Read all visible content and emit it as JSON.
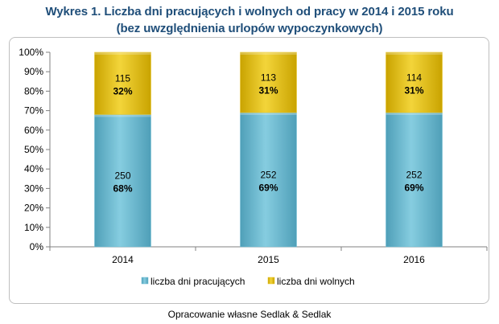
{
  "title_line1": "Wykres 1. Liczba dni pracujących i wolnych od pracy w 2014 i 2015 roku",
  "title_line2": "(bez uwzględnienia urlopów wypoczynkowych)",
  "source": "Opracowanie własne Sedlak & Sedlak",
  "chart_data": {
    "type": "bar",
    "stacked": true,
    "normalized": true,
    "title": "Wykres 1. Liczba dni pracujących i wolnych od pracy w 2014 i 2015 roku (bez uwzględnienia urlopów wypoczynkowych)",
    "categories": [
      "2014",
      "2015",
      "2016"
    ],
    "y_ticks": [
      "0%",
      "10%",
      "20%",
      "30%",
      "40%",
      "50%",
      "60%",
      "70%",
      "80%",
      "90%",
      "100%"
    ],
    "ylim": [
      0,
      100
    ],
    "grid": false,
    "legend_position": "bottom",
    "series": [
      {
        "name": "liczba dni pracujących",
        "color": "#6fbcd3",
        "values": [
          250,
          252,
          252
        ],
        "percent_values": [
          68,
          69,
          69
        ],
        "percent_labels": [
          "68%",
          "69%",
          "69%"
        ]
      },
      {
        "name": "liczba dni wolnych",
        "color": "#e8c21a",
        "values": [
          115,
          113,
          114
        ],
        "percent_values": [
          32,
          31,
          31
        ],
        "percent_labels": [
          "32%",
          "31%",
          "31%"
        ]
      }
    ]
  }
}
